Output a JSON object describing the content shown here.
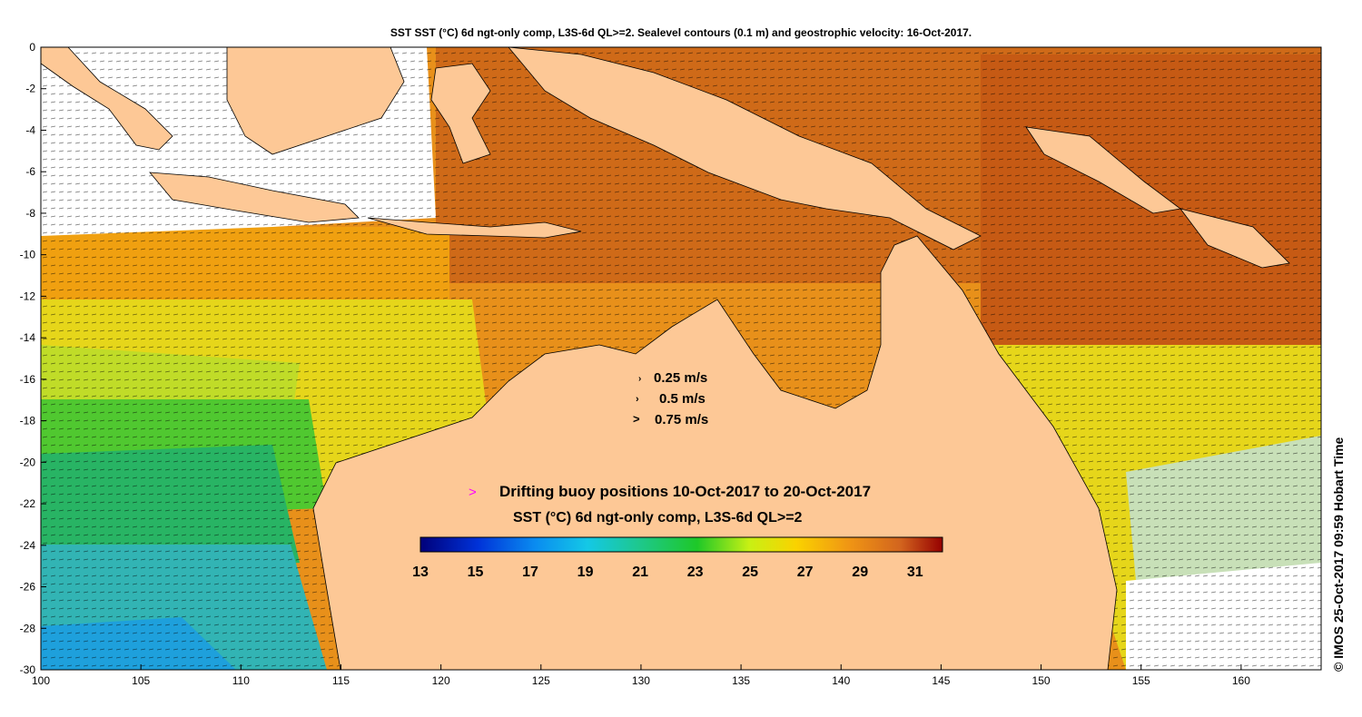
{
  "title": "SST SST (°C) 6d ngt-only comp, L3S-6d QL>=2. Sealevel contours (0.1 m) and geostrophic velocity: 16-Oct-2017.",
  "side_note": "© IMOS 25-Oct-2017 09:59 Hobart Time",
  "axes": {
    "x_ticks": [
      "100",
      "105",
      "110",
      "115",
      "120",
      "125",
      "130",
      "135",
      "140",
      "145",
      "150",
      "155",
      "160"
    ],
    "y_ticks": [
      "0",
      "-2",
      "-4",
      "-6",
      "-8",
      "-10",
      "-12",
      "-14",
      "-16",
      "-18",
      "-20",
      "-22",
      "-24",
      "-26",
      "-28",
      "-30"
    ],
    "lon_range": [
      100,
      164
    ],
    "lat_range": [
      -30,
      0
    ]
  },
  "velocity_legend": [
    "0.25 m/s",
    "0.5 m/s",
    "0.75 m/s"
  ],
  "buoy_legend": {
    "marker": ">",
    "label": "Drifting buoy positions 10-Oct-2017 to 20-Oct-2017",
    "marker_color": "#ff00ff"
  },
  "colorbar": {
    "title": "SST (°C) 6d ngt-only comp, L3S-6d QL>=2",
    "ticks": [
      "13",
      "15",
      "17",
      "19",
      "21",
      "23",
      "25",
      "27",
      "29",
      "31"
    ],
    "range": [
      13,
      32
    ]
  },
  "colors": {
    "land": "#fdc896",
    "ocean_warm": "#e0800a",
    "ocean_hot": "#c85a12"
  }
}
